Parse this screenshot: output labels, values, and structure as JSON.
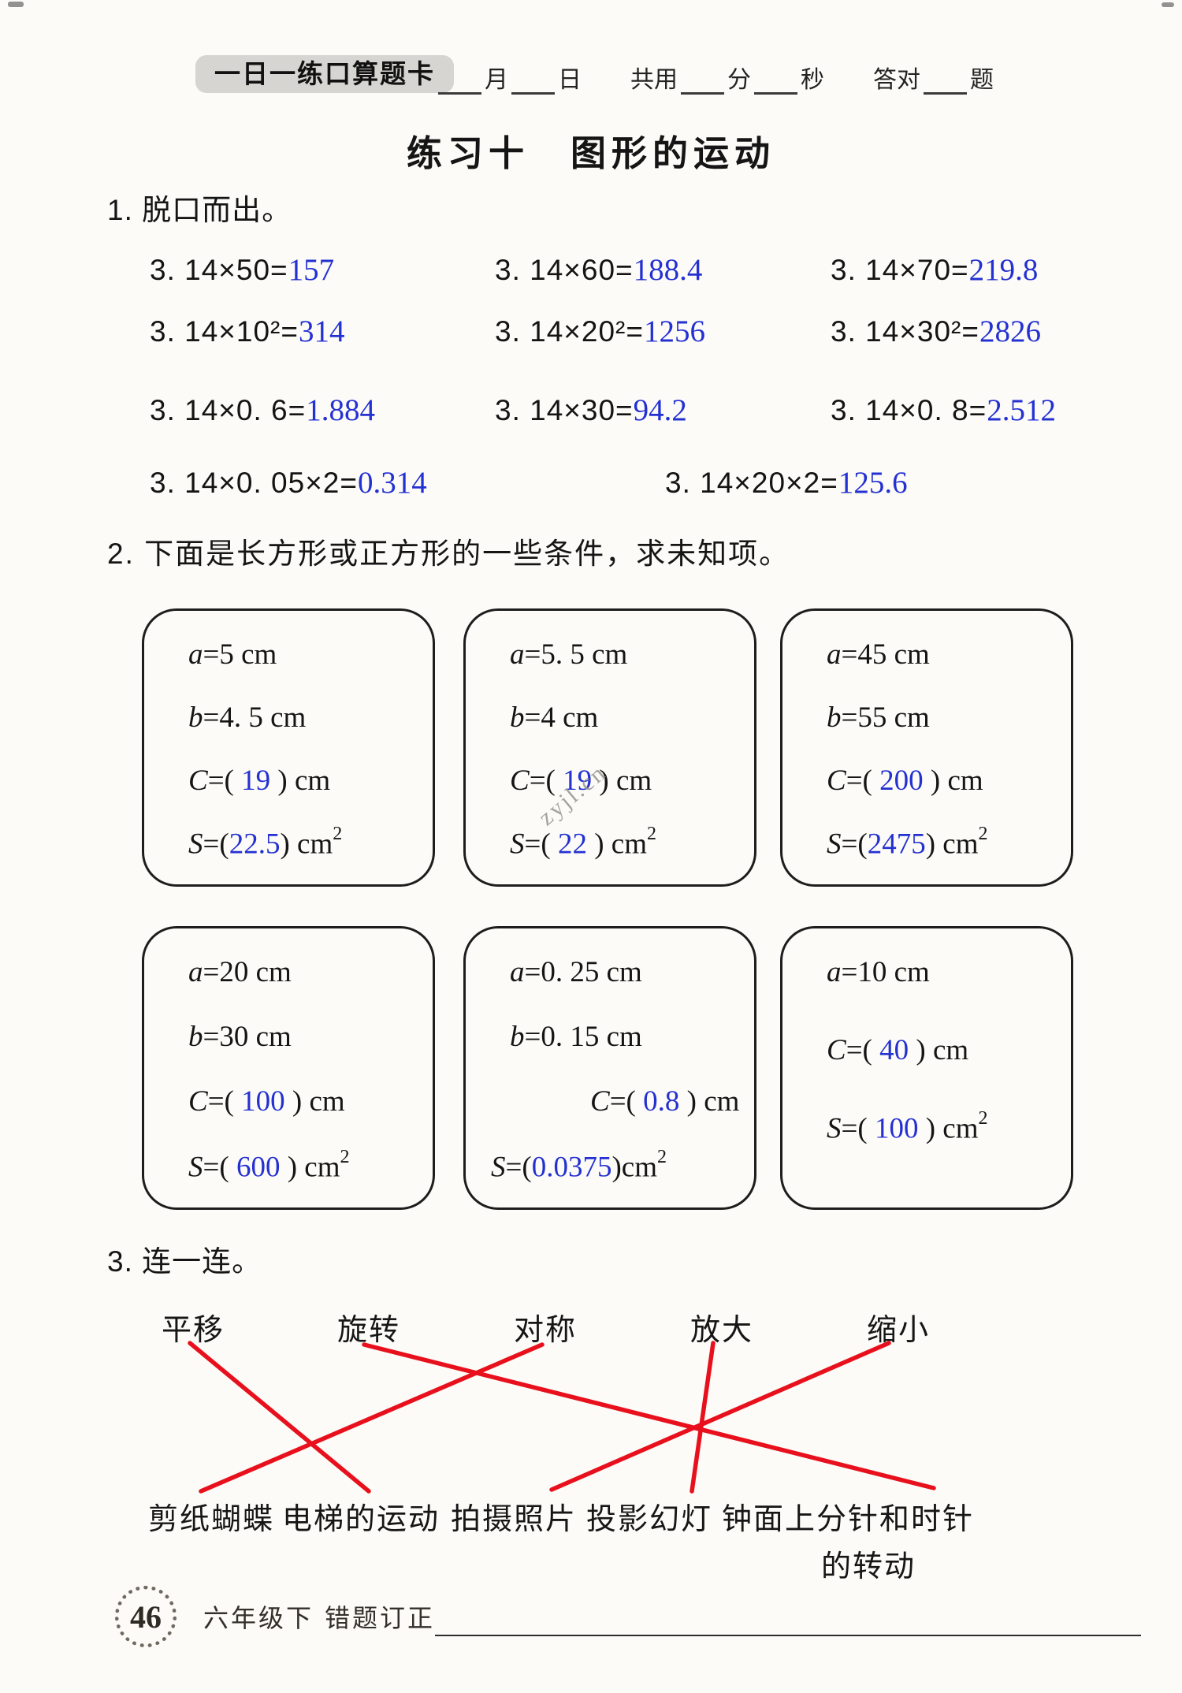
{
  "colors": {
    "answer_blue": "#2431d2",
    "line_red": "#e8101c",
    "badge_gray": "#d6d5d1"
  },
  "header": {
    "badge": "一日一练口算题卡",
    "fields": [
      "月",
      "日",
      "共用",
      "分",
      "秒",
      "答对",
      "题"
    ]
  },
  "title": "练习十　图形的运动",
  "section1": {
    "heading": "1. 脱口而出。",
    "rows": [
      [
        {
          "q": "3. 14×50=",
          "a": "157"
        },
        {
          "q": "3. 14×60=",
          "a": "188.4"
        },
        {
          "q": "3. 14×70=",
          "a": "219.8"
        }
      ],
      [
        {
          "q": "3. 14×10²=",
          "a": "314"
        },
        {
          "q": "3. 14×20²=",
          "a": "1256"
        },
        {
          "q": "3. 14×30²=",
          "a": "2826"
        }
      ],
      [
        {
          "q": "3. 14×0. 6=",
          "a": "1.884"
        },
        {
          "q": "3. 14×30=",
          "a": "94.2"
        },
        {
          "q": "3. 14×0. 8=",
          "a": "2.512"
        }
      ],
      [
        {
          "q": "3. 14×0. 05×2=",
          "a": "0.314"
        },
        {
          "q": "3. 14×20×2=",
          "a": "125.6"
        }
      ]
    ]
  },
  "section2": {
    "heading": "2. 下面是长方形或正方形的一些条件，求未知项。",
    "boxes": [
      {
        "lines": [
          {
            "v": "a",
            "t": "=5 cm"
          },
          {
            "v": "b",
            "t": "=4. 5 cm"
          },
          {
            "v": "C",
            "t": "=( ",
            "a": "19",
            "s": " ) cm"
          },
          {
            "v": "S",
            "t": "=(",
            "a": "22.5",
            "s": ") cm",
            "sup": "2"
          }
        ]
      },
      {
        "lines": [
          {
            "v": "a",
            "t": "=5. 5 cm"
          },
          {
            "v": "b",
            "t": "=4 cm"
          },
          {
            "v": "C",
            "t": "=( ",
            "a": "19",
            "s": " ) cm"
          },
          {
            "v": "S",
            "t": "=( ",
            "a": "22",
            "s": " ) cm",
            "sup": "2"
          }
        ]
      },
      {
        "lines": [
          {
            "v": "a",
            "t": "=45 cm"
          },
          {
            "v": "b",
            "t": "=55 cm"
          },
          {
            "v": "C",
            "t": "=( ",
            "a": "200",
            "s": " ) cm"
          },
          {
            "v": "S",
            "t": "=(",
            "a": "2475",
            "s": ") cm",
            "sup": "2"
          }
        ]
      },
      {
        "lines": [
          {
            "v": "a",
            "t": "=20 cm"
          },
          {
            "v": "b",
            "t": "=30 cm"
          },
          {
            "v": "C",
            "t": "=( ",
            "a": "100",
            "s": " ) cm"
          },
          {
            "v": "S",
            "t": "=( ",
            "a": "600",
            "s": " ) cm",
            "sup": "2"
          }
        ]
      },
      {
        "lines": [
          {
            "v": "a",
            "t": "=0. 25 cm"
          },
          {
            "v": "b",
            "t": "=0. 15 cm"
          },
          {
            "v": "C",
            "t": "=( ",
            "a": "0.8",
            "s": " ) cm"
          },
          {
            "v": "S",
            "t": "=(",
            "a": "0.0375",
            "s": ")cm",
            "sup": "2"
          }
        ]
      },
      {
        "lines": [
          {
            "v": "a",
            "t": "=10 cm"
          },
          {
            "v": "C",
            "t": "=( ",
            "a": "40",
            "s": " ) cm"
          },
          {
            "v": "S",
            "t": "=( ",
            "a": "100",
            "s": " ) cm",
            "sup": "2"
          }
        ]
      }
    ]
  },
  "section3": {
    "heading": "3. 连一连。",
    "top": [
      "平移",
      "旋转",
      "对称",
      "放大",
      "缩小"
    ],
    "bottom": [
      "剪纸蝴蝶",
      "电梯的运动",
      "拍摄照片",
      "投影幻灯",
      "钟面上分针和时针"
    ],
    "bottom_wrap": "的转动",
    "pairs": [
      [
        0,
        1
      ],
      [
        1,
        4
      ],
      [
        2,
        0
      ],
      [
        3,
        3
      ],
      [
        4,
        2
      ]
    ]
  },
  "watermark": "zyjl.cn",
  "footer": {
    "page": "46",
    "grade": "六年级下",
    "label": "错题订正"
  }
}
